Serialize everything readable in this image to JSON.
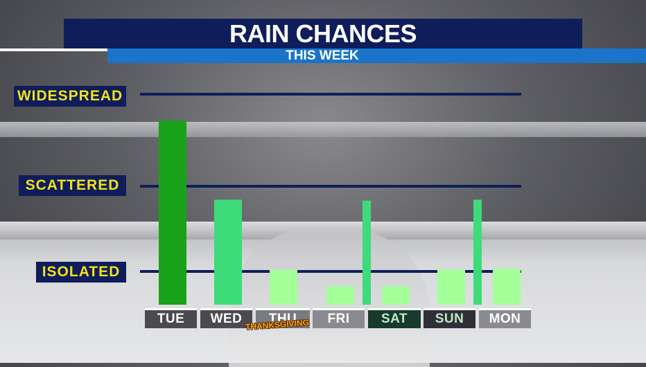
{
  "header": {
    "title": "RAIN CHANCES",
    "subtitle": "THIS WEEK"
  },
  "levels": [
    {
      "label": "WIDESPREAD"
    },
    {
      "label": "SCATTERED"
    },
    {
      "label": "ISOLATED"
    }
  ],
  "days": [
    {
      "label": "TUE",
      "bg": "#4a4a4f"
    },
    {
      "label": "WED",
      "bg": "#4a4a4f"
    },
    {
      "label": "THU",
      "bg": "#66676b",
      "note": "THANKSGIVING"
    },
    {
      "label": "FRI",
      "bg": "#66676b"
    },
    {
      "label": "SAT",
      "bg": "#0f3d2a"
    },
    {
      "label": "SUN",
      "bg": "#3a3b40"
    },
    {
      "label": "MON",
      "bg": "#66676b"
    }
  ],
  "colors": {
    "dark_green": "#1aa21a",
    "mid_green": "#3ddb7a",
    "light_green": "#a3ff98",
    "navy": "#0f1d5a",
    "label_yellow": "#f2e21c",
    "accent_blue": "#1a74c9"
  },
  "chart_data": {
    "type": "bar",
    "title": "RAIN CHANCES",
    "subtitle": "THIS WEEK",
    "categories": [
      "TUE",
      "WED",
      "THU",
      "FRI",
      "SAT",
      "SUN",
      "MON"
    ],
    "scale_labels": [
      "ISOLATED",
      "SCATTERED",
      "WIDESPREAD"
    ],
    "ylim": [
      0,
      2.35
    ],
    "bars": [
      {
        "category": "TUE",
        "value": 2.0,
        "color": "#1aa21a",
        "style": "wide"
      },
      {
        "category": "WED",
        "value": 1.14,
        "color": "#3ddb7a",
        "style": "wide"
      },
      {
        "category": "THU",
        "value": 0.38,
        "color": "#a3ff98",
        "style": "wide"
      },
      {
        "category": "FRI",
        "value": 0.2,
        "color": "#a3ff98",
        "style": "wide"
      },
      {
        "category": "FRI",
        "value": 1.13,
        "color": "#3ddb7a",
        "style": "thin-right"
      },
      {
        "category": "SAT",
        "value": 0.2,
        "color": "#a3ff98",
        "style": "wide"
      },
      {
        "category": "SUN",
        "value": 0.38,
        "color": "#a3ff98",
        "style": "wide"
      },
      {
        "category": "SUN",
        "value": 1.14,
        "color": "#3ddb7a",
        "style": "thin-right"
      },
      {
        "category": "MON",
        "value": 0.39,
        "color": "#a3ff98",
        "style": "wide"
      }
    ],
    "grid": true
  }
}
